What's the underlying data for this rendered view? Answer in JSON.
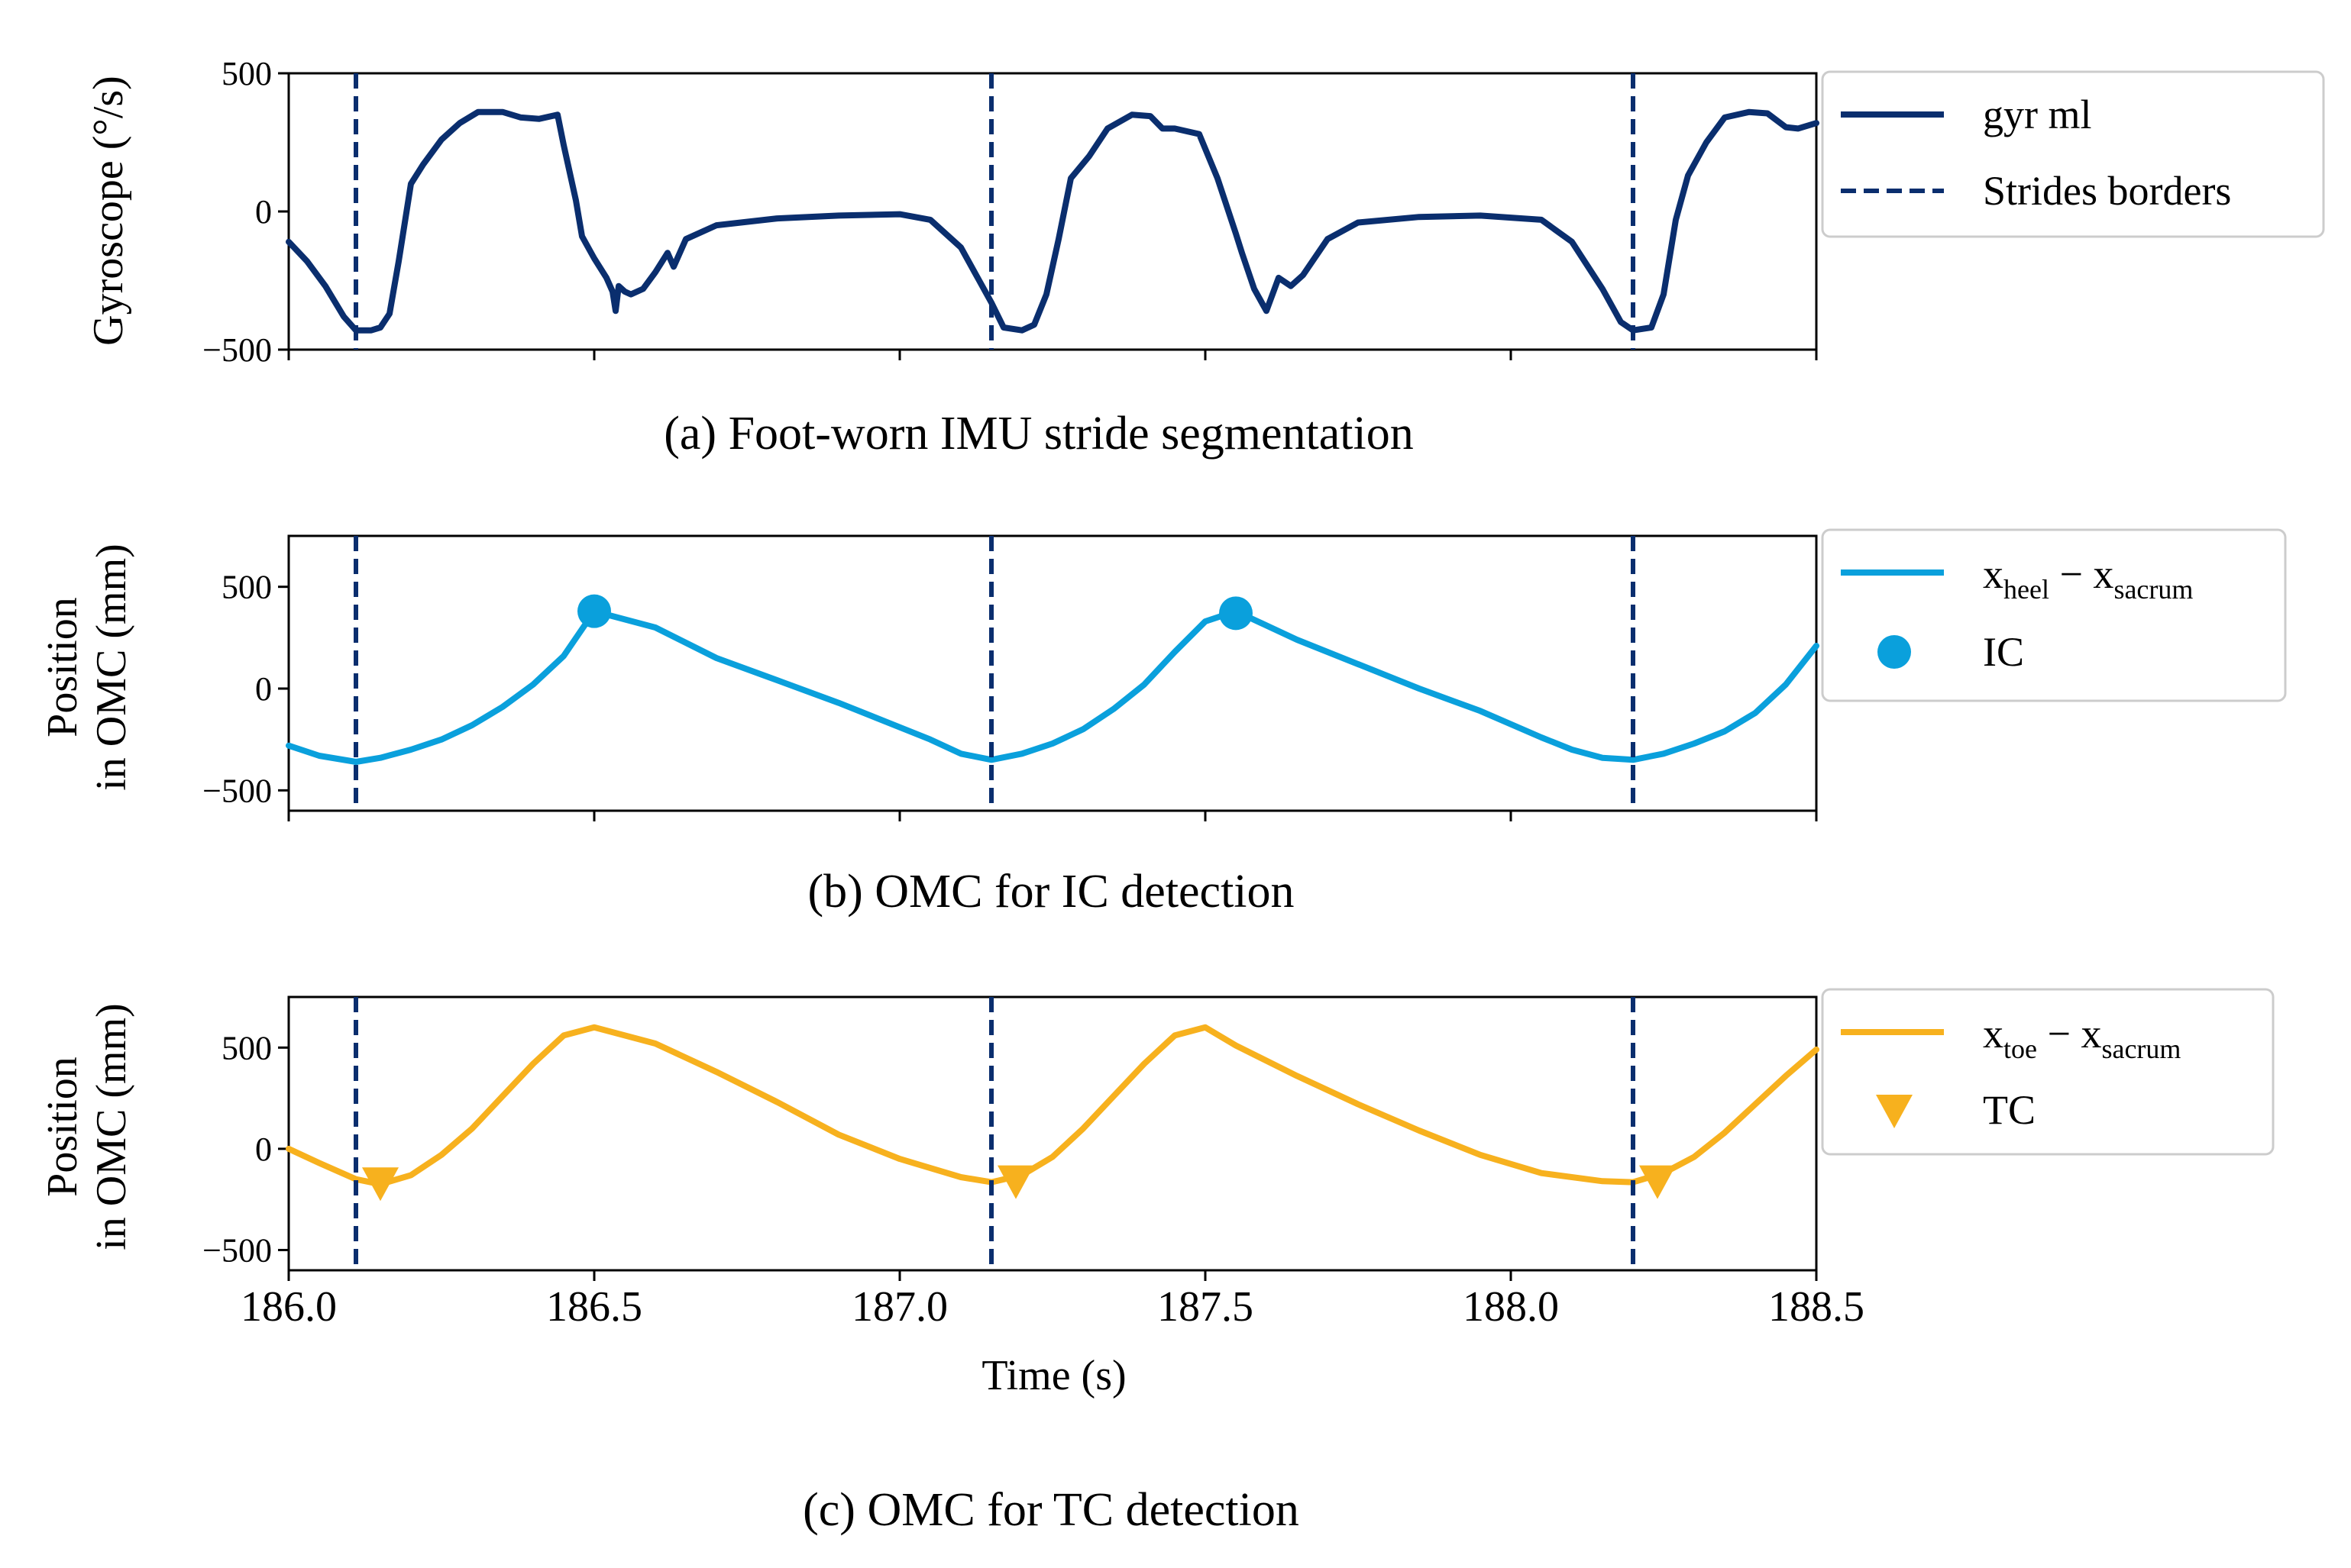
{
  "colors": {
    "gyro": "#0a2e6e",
    "borders": "#0a2e6e",
    "heel": "#0aa0dc",
    "toe": "#f7b11e",
    "frame": "#000000"
  },
  "chart_data": [
    {
      "type": "line",
      "caption": "(a) Foot-worn IMU stride segmentation",
      "ylabel": "Gyroscope (°/s)",
      "ylabel_lines": [
        "Gyroscope (°/s)"
      ],
      "xlim": [
        186.0,
        188.5
      ],
      "ylim": [
        -500,
        500
      ],
      "yticks": [
        500,
        0,
        -500
      ],
      "ytick_labels": [
        "500",
        "0",
        "−500"
      ],
      "xticks": [
        186.0,
        186.5,
        187.0,
        187.5,
        188.0,
        188.5
      ],
      "show_xtick_labels": false,
      "series": [
        {
          "name": "gyr ml",
          "style": "solid",
          "color": "#0a2e6e",
          "x": [
            186.0,
            186.03,
            186.06,
            186.09,
            186.11,
            186.135,
            186.15,
            186.165,
            186.18,
            186.2,
            186.22,
            186.25,
            186.28,
            186.31,
            186.35,
            186.38,
            186.41,
            186.44,
            186.45,
            186.47,
            186.48,
            186.5,
            186.52,
            186.53,
            186.535,
            186.54,
            186.55,
            186.56,
            186.58,
            186.6,
            186.62,
            186.63,
            186.65,
            186.7,
            186.8,
            186.9,
            187.0,
            187.05,
            187.1,
            187.13,
            187.15,
            187.17,
            187.2,
            187.22,
            187.24,
            187.26,
            187.28,
            187.31,
            187.34,
            187.38,
            187.41,
            187.43,
            187.45,
            187.49,
            187.52,
            187.55,
            187.56,
            187.58,
            187.6,
            187.62,
            187.64,
            187.66,
            187.7,
            187.75,
            187.85,
            187.95,
            188.05,
            188.1,
            188.15,
            188.18,
            188.2,
            188.23,
            188.25,
            188.27,
            188.29,
            188.32,
            188.35,
            188.39,
            188.42,
            188.45,
            188.47,
            188.5
          ],
          "y": [
            -110,
            -180,
            -270,
            -380,
            -430,
            -430,
            -420,
            -370,
            -180,
            100,
            170,
            260,
            320,
            360,
            360,
            340,
            335,
            350,
            240,
            40,
            -90,
            -170,
            -240,
            -290,
            -360,
            -270,
            -290,
            -300,
            -280,
            -220,
            -150,
            -200,
            -100,
            -50,
            -25,
            -15,
            -10,
            -30,
            -130,
            -250,
            -330,
            -420,
            -430,
            -410,
            -300,
            -100,
            120,
            200,
            300,
            350,
            345,
            300,
            300,
            280,
            120,
            -80,
            -150,
            -280,
            -360,
            -240,
            -270,
            -230,
            -100,
            -40,
            -20,
            -15,
            -30,
            -110,
            -280,
            -400,
            -430,
            -420,
            -300,
            -30,
            130,
            250,
            340,
            360,
            355,
            305,
            300,
            320
          ]
        },
        {
          "name": "Strides borders",
          "style": "dashed",
          "color": "#0a2e6e",
          "vlines": [
            186.11,
            187.15,
            188.2
          ]
        }
      ],
      "legend": [
        {
          "label": "gyr ml",
          "marker": "solid-line"
        },
        {
          "label": "Strides borders",
          "marker": "dashed-line"
        }
      ],
      "legend_position": "right"
    },
    {
      "type": "line",
      "caption": "(b) OMC for IC detection",
      "ylabel": "Position in OMC (mm)",
      "ylabel_lines": [
        "Position",
        "in OMC (mm)"
      ],
      "xlim": [
        186.0,
        188.5
      ],
      "ylim": [
        -600,
        750
      ],
      "yticks": [
        500,
        0,
        -500
      ],
      "ytick_labels": [
        "500",
        "0",
        "−500"
      ],
      "xticks": [
        186.0,
        186.5,
        187.0,
        187.5,
        188.0,
        188.5
      ],
      "show_xtick_labels": false,
      "series": [
        {
          "name": "x_heel − x_sacrum",
          "style": "solid",
          "color": "#0aa0dc",
          "x": [
            186.0,
            186.05,
            186.11,
            186.15,
            186.2,
            186.25,
            186.3,
            186.35,
            186.4,
            186.45,
            186.5,
            186.6,
            186.7,
            186.8,
            186.9,
            187.0,
            187.05,
            187.1,
            187.15,
            187.2,
            187.25,
            187.3,
            187.35,
            187.4,
            187.45,
            187.5,
            187.55,
            187.65,
            187.75,
            187.85,
            187.95,
            188.05,
            188.1,
            188.15,
            188.2,
            188.25,
            188.3,
            188.35,
            188.4,
            188.45,
            188.5
          ],
          "y": [
            -280,
            -330,
            -360,
            -340,
            -300,
            -250,
            -180,
            -90,
            20,
            160,
            380,
            300,
            150,
            40,
            -70,
            -190,
            -250,
            -320,
            -350,
            -320,
            -270,
            -200,
            -100,
            20,
            180,
            330,
            380,
            240,
            120,
            0,
            -110,
            -240,
            -300,
            -340,
            -350,
            -320,
            -270,
            -210,
            -120,
            20,
            210
          ]
        },
        {
          "name": "IC",
          "style": "points",
          "color": "#0aa0dc",
          "x": [
            186.5,
            187.55
          ],
          "y": [
            380,
            370
          ]
        },
        {
          "name": "Strides borders",
          "style": "dashed",
          "color": "#0a2e6e",
          "vlines": [
            186.11,
            187.15,
            188.2
          ]
        }
      ],
      "legend": [
        {
          "label": "x",
          "sub1": "heel",
          "mid": " − x",
          "sub2": "sacrum",
          "marker": "solid-line"
        },
        {
          "label": "IC",
          "marker": "circle"
        }
      ],
      "legend_position": "right"
    },
    {
      "type": "line",
      "caption": "(c) OMC for TC detection",
      "ylabel": "Position in OMC (mm)",
      "ylabel_lines": [
        "Position",
        "in OMC (mm)"
      ],
      "xlabel": "Time (s)",
      "xlim": [
        186.0,
        188.5
      ],
      "ylim": [
        -600,
        750
      ],
      "yticks": [
        500,
        0,
        -500
      ],
      "ytick_labels": [
        "500",
        "0",
        "−500"
      ],
      "xticks": [
        186.0,
        186.5,
        187.0,
        187.5,
        188.0,
        188.5
      ],
      "xtick_labels": [
        "186.0",
        "186.5",
        "187.0",
        "187.5",
        "188.0",
        "188.5"
      ],
      "show_xtick_labels": true,
      "series": [
        {
          "name": "x_toe − x_sacrum",
          "style": "solid",
          "color": "#f7b11e",
          "x": [
            186.0,
            186.05,
            186.11,
            186.15,
            186.2,
            186.25,
            186.3,
            186.35,
            186.4,
            186.45,
            186.5,
            186.6,
            186.7,
            186.8,
            186.9,
            187.0,
            187.1,
            187.15,
            187.2,
            187.25,
            187.3,
            187.35,
            187.4,
            187.45,
            187.5,
            187.55,
            187.65,
            187.75,
            187.85,
            187.95,
            188.05,
            188.15,
            188.2,
            188.25,
            188.3,
            188.35,
            188.4,
            188.45,
            188.5
          ],
          "y": [
            0,
            -70,
            -150,
            -175,
            -130,
            -30,
            100,
            260,
            420,
            560,
            600,
            520,
            380,
            230,
            70,
            -50,
            -140,
            -165,
            -130,
            -40,
            100,
            260,
            420,
            560,
            600,
            510,
            360,
            220,
            90,
            -30,
            -120,
            -160,
            -165,
            -120,
            -40,
            80,
            220,
            360,
            490
          ]
        },
        {
          "name": "TC",
          "style": "triangles",
          "color": "#f7b11e",
          "x": [
            186.15,
            187.19,
            188.24
          ],
          "y": [
            -175,
            -165,
            -165
          ]
        },
        {
          "name": "Strides borders",
          "style": "dashed",
          "color": "#0a2e6e",
          "vlines": [
            186.11,
            187.15,
            188.2
          ]
        }
      ],
      "legend": [
        {
          "label": "x",
          "sub1": "toe",
          "mid": " − x",
          "sub2": "sacrum",
          "marker": "solid-line"
        },
        {
          "label": "TC",
          "marker": "triangle"
        }
      ],
      "legend_position": "right"
    }
  ]
}
